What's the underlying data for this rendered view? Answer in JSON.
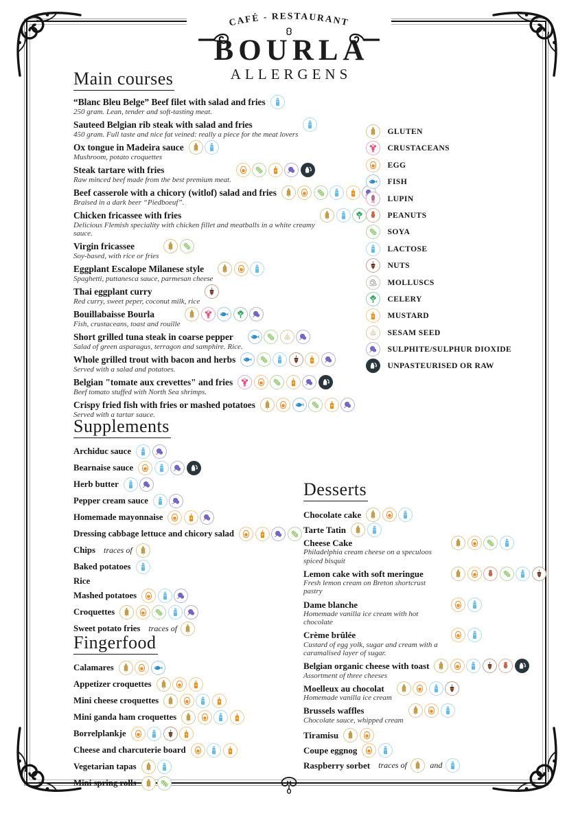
{
  "header": {
    "kicker": "CAFÉ - RESTAURANT",
    "title": "BOURLA",
    "subtitle": "ALLERGENS"
  },
  "allergens": {
    "gluten": {
      "label": "GLUTEN",
      "icon": "wheat-icon",
      "color": "#bf9b45",
      "ring": "#dcc68f"
    },
    "crustaceans": {
      "label": "CRUSTACEANS",
      "icon": "lobster-icon",
      "color": "#e3537c",
      "ring": "#f2a6bf"
    },
    "egg": {
      "label": "EGG",
      "icon": "egg-icon",
      "color": "#f08a1d",
      "ring": "#f7c48d"
    },
    "fish": {
      "label": "FISH",
      "icon": "fish-icon",
      "color": "#2f8dcb",
      "ring": "#9bc9e8"
    },
    "lupin": {
      "label": "LUPIN",
      "icon": "lupin-spike-icon",
      "color": "#b4637f",
      "ring": "#d9aebc"
    },
    "peanuts": {
      "label": "PEANUTS",
      "icon": "peanut-icon",
      "color": "#c05b3c",
      "ring": "#dfab99"
    },
    "soya": {
      "label": "SOYA",
      "icon": "soy-pod-icon",
      "color": "#71b544",
      "ring": "#b4d99a"
    },
    "lactose": {
      "label": "LACTOSE",
      "icon": "milk-bottle-icon",
      "color": "#64bbe8",
      "ring": "#abdcf2"
    },
    "nuts": {
      "label": "NUTS",
      "icon": "acorn-icon",
      "color": "#7d4526",
      "ring": "#c0a18b",
      "cap": "#53301d"
    },
    "molluscs": {
      "label": "MOLLUSCS",
      "icon": "snail-icon",
      "color": "#98988e",
      "ring": "#c6c6bd"
    },
    "celery": {
      "label": "CELERY",
      "icon": "celery-icon",
      "color": "#2ba05c",
      "ring": "#96d1ac"
    },
    "mustard": {
      "label": "MUSTARD",
      "icon": "mustard-bottle-icon",
      "color": "#e8921c",
      "ring": "#f3c88e"
    },
    "sesame": {
      "label": "SESAM SEED",
      "icon": "sesame-dots-icon",
      "color": "#c3a368",
      "ring": "#ddc9a3"
    },
    "sulphite": {
      "label": "SULPHITE/SULPHUR DIOXIDE",
      "icon": "sulphite-icon",
      "color": "#7466c3",
      "ring": "#b7aede"
    },
    "raw": {
      "label": "UNPASTEURISED OR RAW",
      "icon": "raw-milk-icon",
      "color": "#28353b",
      "ring": "#28353b"
    }
  },
  "legend_order": [
    "gluten",
    "crustaceans",
    "egg",
    "fish",
    "lupin",
    "peanuts",
    "soya",
    "lactose",
    "nuts",
    "molluscs",
    "celery",
    "mustard",
    "sesame",
    "sulphite",
    "raw"
  ],
  "sections": [
    {
      "id": "main",
      "heading": "Main courses",
      "items": [
        {
          "title": "“Blanc Bleu Belge” Beef filet with salad and fries",
          "subtitle": "250 gram. Lean, tender and soft-tasting meat.",
          "icons": [
            "lactose"
          ]
        },
        {
          "title": "Sauteed Belgian rib steak with salad and fries",
          "subtitle": "450 gram. Full taste and nice fat veined: really a piece for the meat lovers",
          "icons": [
            "lactose"
          ]
        },
        {
          "title": "Ox tongue in Madeira sauce",
          "subtitle": "Mushroom, potato croquettes",
          "icons": [
            "gluten",
            "lactose"
          ]
        },
        {
          "title": "Steak tartare with fries",
          "subtitle": "Raw minced beef made from the best premium meat.",
          "icons": [
            "egg",
            "soya",
            "mustard",
            "sulphite",
            "raw"
          ]
        },
        {
          "title": "Beef casserole with a chicory (witlof) salad and fries",
          "subtitle": "Braised in a dark beer “Piedboeuf”.",
          "icons": [
            "gluten",
            "egg",
            "soya",
            "lactose",
            "mustard",
            "sulphite"
          ]
        },
        {
          "title": "Chicken fricassee with fries",
          "subtitle": "Delicious Flemish speciality with chicken fillet and meatballs in a white creamy sauce.",
          "icons": [
            "gluten",
            "lactose",
            "celery"
          ]
        },
        {
          "title": "Virgin fricassee",
          "subtitle": "Soy-based, with rice or fries",
          "icons": [
            "gluten",
            "soya"
          ]
        },
        {
          "title": "Eggplant Escalope Milanese style",
          "subtitle": "Spaghetti, puttanesca sauce, parmesan cheese",
          "icons": [
            "gluten",
            "egg",
            "lactose"
          ]
        },
        {
          "title": "Thai eggplant curry",
          "subtitle": "Red curry, sweet peper, coconut milk, rice",
          "icons": [
            "nuts"
          ]
        },
        {
          "title": "Bouillabaisse Bourla",
          "subtitle": "Fish, crustaceans, toast and rouille",
          "icons": [
            "gluten",
            "crustaceans",
            "fish",
            "celery",
            "sulphite"
          ]
        },
        {
          "title": "Short grilled tuna steak in coarse pepper",
          "subtitle": "Salad of green asparagus, terragon and samphire. Rice.",
          "icons": [
            "fish",
            "soya",
            "sesame",
            "sulphite"
          ]
        },
        {
          "title": "Whole grilled trout with bacon and herbs",
          "subtitle": "Served with a salad and potatoes.",
          "icons": [
            "fish",
            "soya",
            "lactose",
            "nuts",
            "mustard",
            "sulphite"
          ]
        },
        {
          "title": "Belgian \"tomate aux crevettes\" and fries",
          "subtitle": "Beef tomato stuffed with North Sea shrimps.",
          "icons": [
            "crustaceans",
            "egg",
            "soya",
            "mustard",
            "sulphite",
            "raw"
          ]
        },
        {
          "title": "Crispy fried fish with fries or mashed potatoes",
          "subtitle": "Served with a tartar sauce.",
          "icons": [
            "gluten",
            "egg",
            "fish",
            "soya",
            "mustard",
            "sulphite"
          ]
        }
      ]
    },
    {
      "id": "supplements",
      "heading": "Supplements",
      "items": [
        {
          "title": "Archiduc sauce",
          "icons": [
            "lactose",
            "sulphite"
          ]
        },
        {
          "title": "Bearnaise sauce",
          "icons": [
            "egg",
            "lactose",
            "sulphite",
            "raw"
          ]
        },
        {
          "title": "Herb butter",
          "icons": [
            "lactose",
            "sulphite"
          ]
        },
        {
          "title": "Pepper cream sauce",
          "icons": [
            "lactose",
            "sulphite"
          ]
        },
        {
          "title": "Homemade mayonnaise",
          "icons": [
            "egg",
            "mustard",
            "sulphite"
          ]
        },
        {
          "title": "Dressing cabbage lettuce and chicory salad",
          "icons": [
            "egg",
            "mustard",
            "sulphite",
            "soya"
          ]
        },
        {
          "title": "Chips",
          "inline": [
            {
              "text": "traces of"
            },
            {
              "icon": "gluten"
            }
          ]
        },
        {
          "title": "Baked potatoes",
          "icons": [
            "lactose"
          ]
        },
        {
          "title": "Rice",
          "icons": []
        },
        {
          "title": "Mashed potatoes",
          "icons": [
            "egg",
            "lactose",
            "sulphite"
          ]
        },
        {
          "title": "Croquettes",
          "icons": [
            "gluten",
            "egg",
            "soya",
            "lactose",
            "sulphite"
          ]
        },
        {
          "title": "Sweet potato fries",
          "inline": [
            {
              "text": "traces of"
            },
            {
              "icon": "gluten"
            }
          ]
        }
      ]
    },
    {
      "id": "fingerfood",
      "heading": "Fingerfood",
      "items": [
        {
          "title": "Calamares",
          "icons": [
            "gluten",
            "egg",
            "fish"
          ]
        },
        {
          "title": "Appetizer croquettes",
          "icons": [
            "gluten",
            "egg",
            "mustard"
          ]
        },
        {
          "title": "Mini cheese croquettes",
          "icons": [
            "gluten",
            "egg",
            "lactose",
            "mustard"
          ]
        },
        {
          "title": "Mini ganda ham croquettes",
          "icons": [
            "gluten",
            "egg",
            "lactose",
            "mustard"
          ]
        },
        {
          "title": "Borrelplankje",
          "icons": [
            "egg",
            "lactose",
            "nuts",
            "mustard"
          ]
        },
        {
          "title": "Cheese and charcuterie board",
          "icons": [
            "egg",
            "lactose",
            "mustard"
          ]
        },
        {
          "title": "Vegetarian tapas",
          "icons": [
            "gluten",
            "lactose"
          ]
        },
        {
          "title": "Mini spring rolls",
          "icons": [
            "gluten",
            "soya"
          ]
        }
      ]
    },
    {
      "id": "desserts",
      "heading": "Desserts",
      "items": [
        {
          "title": "Chocolate cake",
          "icons": [
            "gluten",
            "egg",
            "lactose"
          ]
        },
        {
          "title": "Tarte Tatin",
          "icons": [
            "gluten",
            "lactose"
          ]
        },
        {
          "title": "Cheese Cake",
          "subtitle": "Philadelphia cream cheese on a speculoos spiced bisquit",
          "icons": [
            "gluten",
            "egg",
            "soya",
            "lactose"
          ]
        },
        {
          "title": "Lemon cake with soft meringue",
          "subtitle": "Fresh lemon cream on Breton shortcrust pastry",
          "icons": [
            "gluten",
            "egg",
            "peanuts",
            "soya",
            "lactose",
            "nuts"
          ]
        },
        {
          "title": "Dame blanche",
          "subtitle": "Homemade vanilla ice cream with hot chocolate",
          "icons": [
            "egg",
            "lactose"
          ]
        },
        {
          "title": "Crème brûlée",
          "subtitle": "Custard of egg yolk, sugar and cream with a caramalised layer of sugar.",
          "icons": [
            "egg",
            "lactose"
          ]
        },
        {
          "title": "Belgian organic cheese with toast",
          "subtitle": "Assortment of three cheeses",
          "icons": [
            "gluten",
            "egg",
            "lactose",
            "nuts",
            "peanuts",
            "raw"
          ]
        },
        {
          "title": "Moelleux au chocolat",
          "subtitle": "Homemade vanilla ice cream",
          "icons": [
            "gluten",
            "egg",
            "lactose",
            "nuts"
          ]
        },
        {
          "title": "Brussels waffles",
          "subtitle": "Chocolate sauce, whipped cream",
          "icons": [
            "gluten",
            "egg",
            "lactose"
          ]
        },
        {
          "title": "Tiramisu",
          "icons": [
            "gluten",
            "egg"
          ]
        },
        {
          "title": "Coupe eggnog",
          "icons": [
            "egg",
            "lactose"
          ]
        },
        {
          "title": "Raspberry sorbet",
          "inline": [
            {
              "text": "traces of"
            },
            {
              "icon": "gluten"
            },
            {
              "text": "and"
            },
            {
              "icon": "lactose"
            }
          ]
        }
      ]
    }
  ]
}
